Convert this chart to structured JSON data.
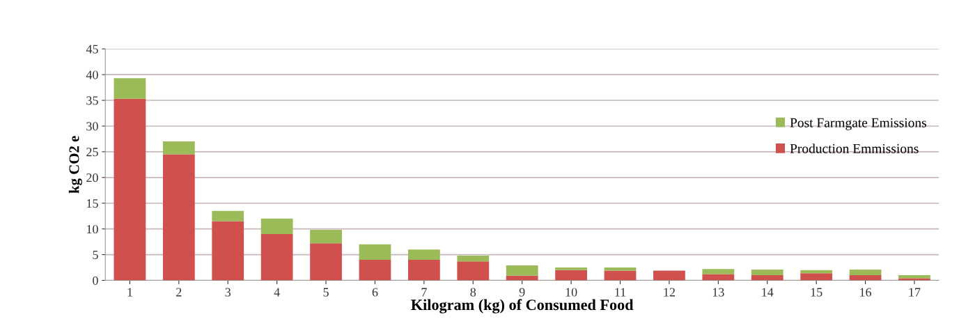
{
  "chart_data": {
    "type": "bar",
    "stacked": true,
    "xlabel": "Kilogram (kg) of Consumed Food",
    "ylabel": "kg CO2 e",
    "categories": [
      "1",
      "2",
      "3",
      "4",
      "5",
      "6",
      "7",
      "8",
      "9",
      "10",
      "11",
      "12",
      "13",
      "14",
      "15",
      "16",
      "17"
    ],
    "series": [
      {
        "name": "Production Emmissions",
        "color": "#d0504d",
        "values": [
          35.3,
          24.5,
          11.5,
          9,
          7.2,
          4,
          4,
          3.7,
          0.9,
          2,
          1.9,
          1.9,
          1.2,
          1,
          1.4,
          1,
          0.4
        ]
      },
      {
        "name": "Post Farmgate Emissions",
        "color": "#9bbb59",
        "values": [
          4,
          2.5,
          2,
          3,
          2.6,
          3,
          2,
          1.1,
          2,
          0.5,
          0.6,
          0,
          1,
          1.1,
          0.6,
          1.1,
          0.6
        ]
      }
    ],
    "ylim": [
      0,
      45
    ],
    "yticks": [
      0,
      5,
      10,
      15,
      20,
      25,
      30,
      35,
      40,
      45
    ],
    "grid": "y",
    "legend": "right"
  }
}
